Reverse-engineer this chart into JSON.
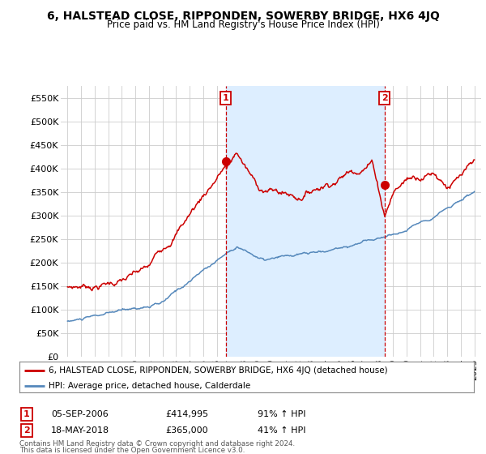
{
  "title": "6, HALSTEAD CLOSE, RIPPONDEN, SOWERBY BRIDGE, HX6 4JQ",
  "subtitle": "Price paid vs. HM Land Registry's House Price Index (HPI)",
  "ylabel_ticks": [
    "£0",
    "£50K",
    "£100K",
    "£150K",
    "£200K",
    "£250K",
    "£300K",
    "£350K",
    "£400K",
    "£450K",
    "£500K",
    "£550K"
  ],
  "ytick_values": [
    0,
    50000,
    100000,
    150000,
    200000,
    250000,
    300000,
    350000,
    400000,
    450000,
    500000,
    550000
  ],
  "ylim": [
    0,
    575000
  ],
  "legend_line1": "6, HALSTEAD CLOSE, RIPPONDEN, SOWERBY BRIDGE, HX6 4JQ (detached house)",
  "legend_line2": "HPI: Average price, detached house, Calderdale",
  "sale1_date": "05-SEP-2006",
  "sale1_price": "£414,995",
  "sale1_hpi": "91% ↑ HPI",
  "sale2_date": "18-MAY-2018",
  "sale2_price": "£365,000",
  "sale2_hpi": "41% ↑ HPI",
  "footnote1": "Contains HM Land Registry data © Crown copyright and database right 2024.",
  "footnote2": "This data is licensed under the Open Government Licence v3.0.",
  "red_color": "#cc0000",
  "blue_color": "#5588bb",
  "shade_color": "#ddeeff",
  "background_color": "#ffffff",
  "grid_color": "#cccccc",
  "sale1_x": 2006.67,
  "sale2_x": 2018.38,
  "sale1_y": 414995,
  "sale2_y": 365000,
  "xmin": 1995,
  "xmax": 2025
}
